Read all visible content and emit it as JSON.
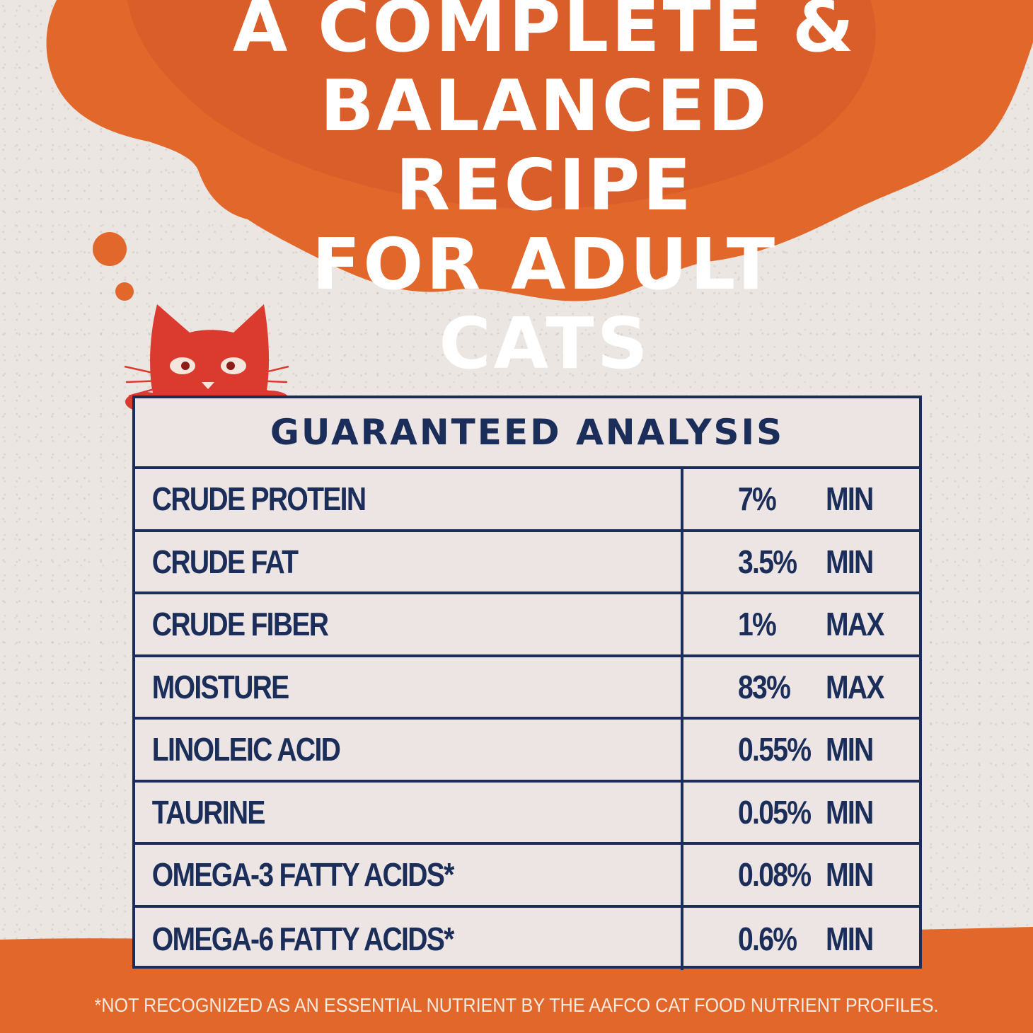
{
  "headline": {
    "lines": [
      "A COMPLETE &",
      "BALANCED RECIPE",
      "FOR ADULT CATS"
    ]
  },
  "analysis": {
    "title": "GUARANTEED ANALYSIS",
    "rows": [
      {
        "nutrient": "CRUDE PROTEIN",
        "amount": "7%",
        "kind": "MIN"
      },
      {
        "nutrient": "CRUDE FAT",
        "amount": "3.5%",
        "kind": "MIN"
      },
      {
        "nutrient": "CRUDE FIBER",
        "amount": "1%",
        "kind": "MAX"
      },
      {
        "nutrient": "MOISTURE",
        "amount": "83%",
        "kind": "MAX"
      },
      {
        "nutrient": "LINOLEIC ACID",
        "amount": "0.55%",
        "kind": "MIN"
      },
      {
        "nutrient": "TAURINE",
        "amount": "0.05%",
        "kind": "MIN"
      },
      {
        "nutrient": "OMEGA-3 FATTY ACIDS*",
        "amount": "0.08%",
        "kind": "MIN"
      },
      {
        "nutrient": "OMEGA-6 FATTY ACIDS*",
        "amount": "0.6%",
        "kind": "MIN"
      }
    ]
  },
  "footnote": "*NOT RECOGNIZED AS AN ESSENTIAL NUTRIENT BY THE AAFCO CAT FOOD NUTRIENT PROFILES.",
  "colors": {
    "orange": "#e2672a",
    "navy": "#1b2e5a",
    "cat_red": "#db3a2f",
    "paper": "#ece6e2"
  },
  "icons": {
    "mascot": "cat-peeking-icon",
    "thought_bubbles": "thought-bubble-icon"
  }
}
